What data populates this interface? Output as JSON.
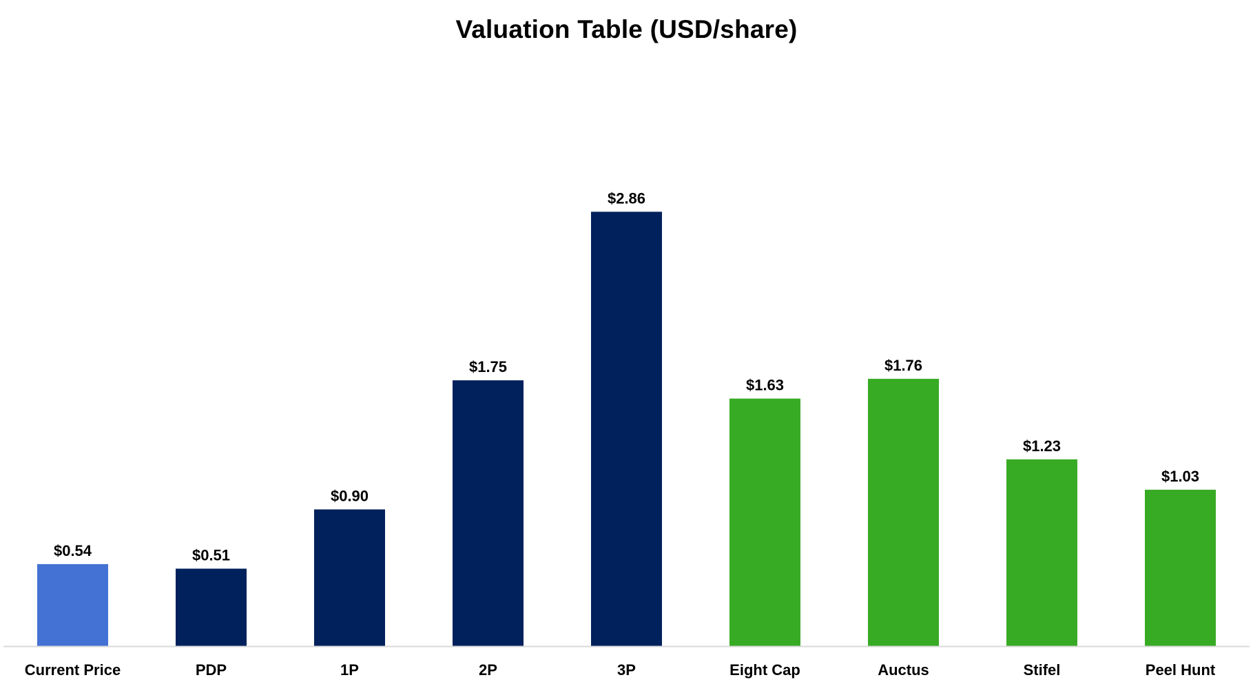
{
  "chart_data": {
    "type": "bar",
    "title": "Valuation Table (USD/share)",
    "xlabel": "",
    "ylabel": "",
    "ylim": [
      0,
      3.5
    ],
    "grid": false,
    "legend": "none",
    "categories": [
      "Current Price",
      "PDP",
      "1P",
      "2P",
      "3P",
      "Eight Cap",
      "Auctus",
      "Stifel",
      "Peel Hunt"
    ],
    "values": [
      0.54,
      0.51,
      0.9,
      1.75,
      2.86,
      1.63,
      1.76,
      1.23,
      1.03
    ],
    "data_labels": [
      "$0.54",
      "$0.51",
      "$0.90",
      "$1.75",
      "$2.86",
      "$1.63",
      "$1.76",
      "$1.23",
      "$1.03"
    ],
    "bar_colors": [
      "#4472D4",
      "#00215C",
      "#00215C",
      "#00215C",
      "#00215C",
      "#38AB25",
      "#38AB25",
      "#38AB25",
      "#38AB25"
    ],
    "axis_color": "#D9D9D9"
  }
}
